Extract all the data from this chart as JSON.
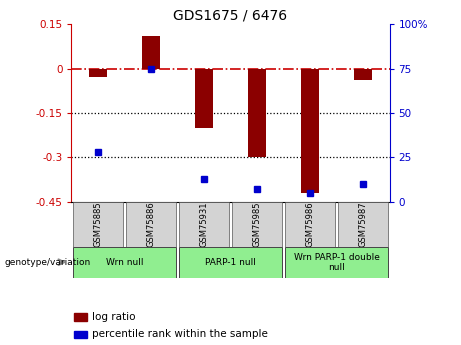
{
  "title": "GDS1675 / 6476",
  "samples": [
    "GSM75885",
    "GSM75886",
    "GSM75931",
    "GSM75985",
    "GSM75986",
    "GSM75987"
  ],
  "log_ratio": [
    -0.03,
    0.11,
    -0.2,
    -0.3,
    -0.42,
    -0.04
  ],
  "percentile_rank": [
    28,
    75,
    13,
    7,
    5,
    10
  ],
  "ylim_left": [
    -0.45,
    0.15
  ],
  "ylim_right": [
    0,
    100
  ],
  "yticks_left": [
    0.15,
    0,
    -0.15,
    -0.3,
    -0.45
  ],
  "yticks_right": [
    100,
    75,
    50,
    25,
    0
  ],
  "bar_color": "#8B0000",
  "dot_color": "#0000CD",
  "hline_color": "#CC0000",
  "sample_box_color": "#d3d3d3",
  "group_color": "#90EE90",
  "legend_log_ratio_color": "#8B0000",
  "legend_percentile_color": "#0000CD",
  "group_info": [
    [
      0,
      1,
      "Wrn null"
    ],
    [
      2,
      3,
      "PARP-1 null"
    ],
    [
      4,
      5,
      "Wrn PARP-1 double\nnull"
    ]
  ]
}
